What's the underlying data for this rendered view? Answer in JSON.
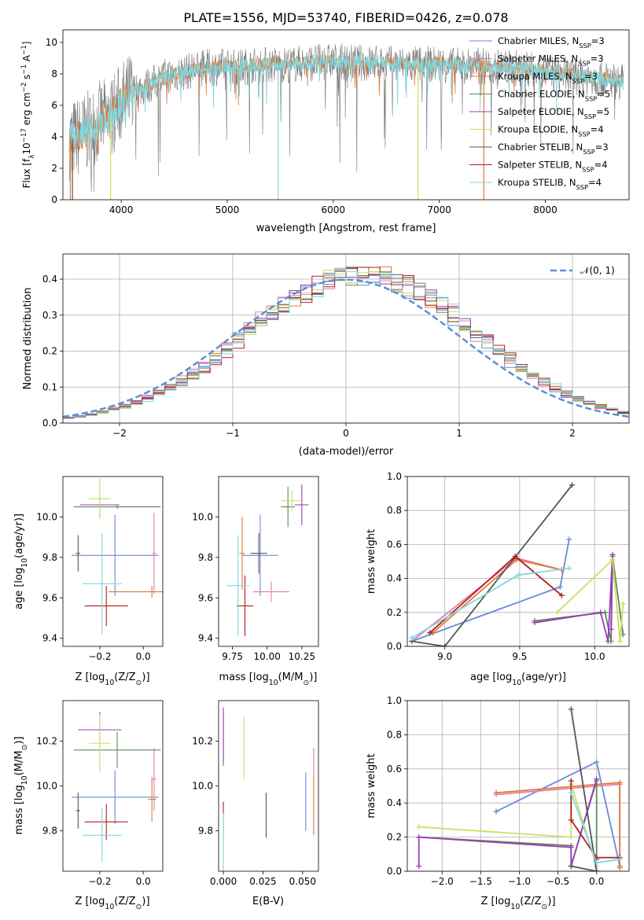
{
  "figure": {
    "title": "PLATE=1556, MJD=53740, FIBERID=0426, z=0.078"
  },
  "colors": {
    "chabrier_miles": "#6a8ad8",
    "salpeter_miles": "#e67ca9",
    "kroupa_miles": "#e07a3a",
    "chabrier_elodie": "#5a8a5a",
    "salpeter_elodie": "#9b3bb5",
    "kroupa_elodie": "#c8e060",
    "chabrier_stelib": "#555555",
    "salpeter_stelib": "#b41e1e",
    "kroupa_stelib": "#7fd8e0",
    "normal_curve": "#5b8fd8",
    "data_spectrum": "#777777"
  },
  "chart_data": [
    {
      "id": "spectrum",
      "type": "line",
      "title": "PLATE=1556, MJD=53740, FIBERID=0426, z=0.078",
      "xlabel": "wavelength [Angstrom, rest frame]",
      "ylabel": "Flux [f",
      "ylabel_sub": "λ",
      "ylabel_rest": "10",
      "ylabel_exp": "−17",
      "ylabel_tail": " erg cm",
      "ylabel_exp2": "−2",
      "ylabel_s": " s",
      "ylabel_exp3": "−1",
      "ylabel_A": " A",
      "ylabel_exp4": "−1",
      "ylabel_end": "]",
      "xlim": [
        3450,
        8790
      ],
      "ylim": [
        0,
        10.8
      ],
      "xticks": [
        "4000",
        "5000",
        "6000",
        "7000",
        "8000"
      ],
      "yticks": [
        "0",
        "2",
        "4",
        "6",
        "8",
        "10"
      ],
      "continuum_x": [
        3500,
        3600,
        3700,
        3800,
        3900,
        4000,
        4100,
        4200,
        4300,
        4400,
        4500,
        4600,
        4700,
        4800,
        4900,
        5000,
        5100,
        5200,
        5400,
        5600,
        5800,
        6000,
        6200,
        6400,
        6600,
        6800,
        7000,
        7200,
        7400,
        7600,
        7800,
        8000,
        8200,
        8400,
        8600,
        8750
      ],
      "continuum_y": [
        3.8,
        4.0,
        4.4,
        5.0,
        5.3,
        6.2,
        6.9,
        7.1,
        7.4,
        7.8,
        8.0,
        8.1,
        8.3,
        8.4,
        8.4,
        8.5,
        8.4,
        8.5,
        8.6,
        8.6,
        8.7,
        8.8,
        8.7,
        8.7,
        8.6,
        8.6,
        8.6,
        8.5,
        8.5,
        8.4,
        8.3,
        8.1,
        7.9,
        7.8,
        7.6,
        7.5
      ],
      "legend": [
        {
          "label": "Chabrier MILES, N",
          "sub": "SSP",
          "tail": "=3",
          "color_key": "chabrier_miles"
        },
        {
          "label": "Salpeter MILES, N",
          "sub": "SSP",
          "tail": "=3",
          "color_key": "salpeter_miles"
        },
        {
          "label": "Kroupa MILES, N",
          "sub": "SSP",
          "tail": "=3",
          "color_key": "kroupa_miles"
        },
        {
          "label": "Chabrier ELODIE, N",
          "sub": "SSP",
          "tail": "=5",
          "color_key": "chabrier_elodie"
        },
        {
          "label": "Salpeter ELODIE, N",
          "sub": "SSP",
          "tail": "=5",
          "color_key": "salpeter_elodie"
        },
        {
          "label": "Kroupa ELODIE, N",
          "sub": "SSP",
          "tail": "=4",
          "color_key": "kroupa_elodie"
        },
        {
          "label": "Chabrier STELIB, N",
          "sub": "SSP",
          "tail": "=3",
          "color_key": "chabrier_stelib"
        },
        {
          "label": "Salpeter STELIB, N",
          "sub": "SSP",
          "tail": "=4",
          "color_key": "salpeter_stelib"
        },
        {
          "label": "Kroupa STELIB, N",
          "sub": "SSP",
          "tail": "=4",
          "color_key": "kroupa_stelib"
        }
      ]
    },
    {
      "id": "residuals",
      "type": "line",
      "xlabel": "(data-model)/error",
      "ylabel": "Normed distribution",
      "xlim": [
        -2.5,
        2.5
      ],
      "ylim": [
        0,
        0.47
      ],
      "xticks": [
        "−2",
        "−1",
        "0",
        "1",
        "2"
      ],
      "yticks": [
        "0.0",
        "0.1",
        "0.2",
        "0.3",
        "0.4"
      ],
      "grid": true,
      "legend_label": "𝒩(0, 1)",
      "bin_width": 0.1
    },
    {
      "id": "age_vs_Z",
      "type": "scatter",
      "xlabel": "Z [log",
      "xlabel_sub": "10",
      "xlabel_tail": "(Z/Z",
      "xlabel_sun": "⊙",
      "xlabel_end": ")]",
      "ylabel": "age  [log",
      "ylabel_sub": "10",
      "ylabel_tail": "(age/yr)]",
      "xlim": [
        -0.37,
        0.09
      ],
      "ylim": [
        9.36,
        10.2
      ],
      "xticks": [
        "−0.2",
        "0.0"
      ],
      "yticks": [
        "9.4",
        "9.6",
        "9.8",
        "10.0"
      ],
      "points": [
        {
          "key": "chabrier_miles",
          "x": -0.13,
          "y": 9.81,
          "xerr": 0.2,
          "yerr": 0.2
        },
        {
          "key": "salpeter_miles",
          "x": 0.05,
          "y": 9.82,
          "xerr": 0.01,
          "yerr": 0.2
        },
        {
          "key": "kroupa_miles",
          "x": 0.04,
          "y": 9.63,
          "xerr": 0.2,
          "yerr": 0.03
        },
        {
          "key": "chabrier_elodie",
          "x": -0.12,
          "y": 10.05,
          "xerr": 0.2,
          "yerr": 0.01
        },
        {
          "key": "salpeter_elodie",
          "x": -0.2,
          "y": 10.06,
          "xerr": 0.09,
          "yerr": 0.06
        },
        {
          "key": "kroupa_elodie",
          "x": -0.2,
          "y": 10.09,
          "xerr": 0.05,
          "yerr": 0.1
        },
        {
          "key": "chabrier_stelib",
          "x": -0.3,
          "y": 9.82,
          "xerr": 0.01,
          "yerr": 0.09
        },
        {
          "key": "salpeter_stelib",
          "x": -0.17,
          "y": 9.56,
          "xerr": 0.1,
          "yerr": 0.1
        },
        {
          "key": "kroupa_stelib",
          "x": -0.19,
          "y": 9.67,
          "xerr": 0.09,
          "yerr": 0.25
        }
      ]
    },
    {
      "id": "age_vs_mass",
      "type": "scatter",
      "xlabel": "mass [log",
      "xlabel_sub": "10",
      "xlabel_tail": "(M/M",
      "xlabel_sun": "⊙",
      "xlabel_end": ")]",
      "xlim": [
        9.65,
        10.37
      ],
      "ylim": [
        9.36,
        10.2
      ],
      "xticks": [
        "9.75",
        "10.00",
        "10.25"
      ],
      "yticks": [
        "9.4",
        "9.6",
        "9.8",
        "10.0"
      ],
      "points": [
        {
          "key": "chabrier_miles",
          "x": 9.95,
          "y": 9.81,
          "xerr": 0.13,
          "yerr": 0.2
        },
        {
          "key": "salpeter_miles",
          "x": 10.03,
          "y": 9.63,
          "xerr": 0.13,
          "yerr": 0.05
        },
        {
          "key": "kroupa_miles",
          "x": 9.82,
          "y": 9.82,
          "xerr": 0.02,
          "yerr": 0.18
        },
        {
          "key": "chabrier_elodie",
          "x": 10.15,
          "y": 10.05,
          "xerr": 0.05,
          "yerr": 0.1
        },
        {
          "key": "salpeter_elodie",
          "x": 10.25,
          "y": 10.06,
          "xerr": 0.05,
          "yerr": 0.1
        },
        {
          "key": "kroupa_elodie",
          "x": 10.18,
          "y": 10.08,
          "xerr": 0.08,
          "yerr": 0.05
        },
        {
          "key": "chabrier_stelib",
          "x": 9.94,
          "y": 9.82,
          "xerr": 0.06,
          "yerr": 0.1
        },
        {
          "key": "salpeter_stelib",
          "x": 9.84,
          "y": 9.56,
          "xerr": 0.06,
          "yerr": 0.15
        },
        {
          "key": "kroupa_stelib",
          "x": 9.79,
          "y": 9.66,
          "xerr": 0.08,
          "yerr": 0.25
        }
      ]
    },
    {
      "id": "weight_vs_age",
      "type": "line",
      "xlabel": "age  [log",
      "xlabel_sub": "10",
      "xlabel_tail": "(age/yr)]",
      "ylabel": "mass weight",
      "xlim": [
        8.75,
        10.23
      ],
      "ylim": [
        0,
        1
      ],
      "xticks": [
        "9.0",
        "9.5",
        "10.0"
      ],
      "yticks": [
        "0.0",
        "0.2",
        "0.4",
        "0.6",
        "0.8",
        "1.0"
      ],
      "grid": true,
      "series": [
        {
          "key": "chabrier_miles",
          "x": [
            8.78,
            9.77,
            9.83
          ],
          "y": [
            0.03,
            0.35,
            0.63
          ]
        },
        {
          "key": "salpeter_miles",
          "x": [
            8.78,
            9.48,
            9.78
          ],
          "y": [
            0.03,
            0.52,
            0.45
          ]
        },
        {
          "key": "kroupa_miles",
          "x": [
            8.92,
            9.48,
            9.78
          ],
          "y": [
            0.08,
            0.51,
            0.45
          ]
        },
        {
          "key": "chabrier_elodie",
          "x": [
            9.6,
            10.07,
            10.11,
            10.12,
            10.19
          ],
          "y": [
            0.15,
            0.2,
            0.03,
            0.53,
            0.07
          ]
        },
        {
          "key": "salpeter_elodie",
          "x": [
            9.6,
            10.04,
            10.09,
            10.12,
            10.11
          ],
          "y": [
            0.14,
            0.2,
            0.03,
            0.54,
            0.1
          ]
        },
        {
          "key": "kroupa_elodie",
          "x": [
            9.75,
            10.12,
            10.17,
            10.19
          ],
          "y": [
            0.2,
            0.51,
            0.03,
            0.25
          ]
        },
        {
          "key": "chabrier_stelib",
          "x": [
            8.78,
            9.0,
            9.85
          ],
          "y": [
            0.03,
            0.0,
            0.95
          ]
        },
        {
          "key": "salpeter_stelib",
          "x": [
            8.9,
            9.47,
            9.78
          ],
          "y": [
            0.08,
            0.53,
            0.3
          ]
        },
        {
          "key": "kroupa_stelib",
          "x": [
            8.78,
            9.49,
            9.83
          ],
          "y": [
            0.05,
            0.42,
            0.46
          ]
        }
      ]
    },
    {
      "id": "mass_vs_Z",
      "type": "scatter",
      "xlabel": "Z [log",
      "xlabel_sub": "10",
      "xlabel_tail": "(Z/Z",
      "xlabel_sun": "⊙",
      "xlabel_end": ")]",
      "ylabel": "mass [log",
      "ylabel_sub": "10",
      "ylabel_tail": "(M/M",
      "ylabel_sun": "⊙",
      "ylabel_end": ")]",
      "xlim": [
        -0.37,
        0.09
      ],
      "ylim": [
        9.62,
        10.38
      ],
      "xticks": [
        "−0.2",
        "0.0"
      ],
      "yticks": [
        "9.8",
        "10.0",
        "10.2"
      ],
      "points": [
        {
          "key": "chabrier_miles",
          "x": -0.13,
          "y": 9.95,
          "xerr": 0.2,
          "yerr": 0.12
        },
        {
          "key": "salpeter_miles",
          "x": 0.05,
          "y": 10.03,
          "xerr": 0.01,
          "yerr": 0.14
        },
        {
          "key": "kroupa_miles",
          "x": 0.04,
          "y": 9.94,
          "xerr": 0.02,
          "yerr": 0.1
        },
        {
          "key": "chabrier_elodie",
          "x": -0.12,
          "y": 10.16,
          "xerr": 0.2,
          "yerr": 0.08
        },
        {
          "key": "salpeter_elodie",
          "x": -0.2,
          "y": 10.25,
          "xerr": 0.1,
          "yerr": 0.08
        },
        {
          "key": "kroupa_elodie",
          "x": -0.2,
          "y": 10.19,
          "xerr": 0.05,
          "yerr": 0.13
        },
        {
          "key": "chabrier_stelib",
          "x": -0.3,
          "y": 9.89,
          "xerr": 0.01,
          "yerr": 0.08
        },
        {
          "key": "salpeter_stelib",
          "x": -0.17,
          "y": 9.84,
          "xerr": 0.1,
          "yerr": 0.08
        },
        {
          "key": "kroupa_stelib",
          "x": -0.19,
          "y": 9.78,
          "xerr": 0.09,
          "yerr": 0.12
        }
      ]
    },
    {
      "id": "mass_vs_ebv",
      "type": "scatter",
      "xlabel": "E(B-V)",
      "xlim": [
        -0.003,
        0.06
      ],
      "ylim": [
        9.62,
        10.38
      ],
      "xticks": [
        "0.000",
        "0.025",
        "0.050"
      ],
      "yticks": [
        "9.8",
        "10.0",
        "10.2"
      ],
      "points": [
        {
          "key": "chabrier_miles",
          "x": 0.052,
          "y": 9.93,
          "yerr": 0.13
        },
        {
          "key": "salpeter_miles",
          "x": 0.057,
          "y": 9.98,
          "yerr": 0.19
        },
        {
          "key": "kroupa_miles",
          "x": 0.057,
          "y": 9.91,
          "yerr": 0.13
        },
        {
          "key": "chabrier_elodie",
          "x": 0.0,
          "y": 10.21,
          "yerr": 0.12
        },
        {
          "key": "salpeter_elodie",
          "x": 0.0,
          "y": 10.23,
          "yerr": 0.12
        },
        {
          "key": "kroupa_elodie",
          "x": 0.013,
          "y": 10.17,
          "yerr": 0.14
        },
        {
          "key": "chabrier_stelib",
          "x": 0.027,
          "y": 9.87,
          "yerr": 0.1
        },
        {
          "key": "salpeter_stelib",
          "x": 0.0,
          "y": 9.85,
          "yerr": 0.08
        },
        {
          "key": "kroupa_stelib",
          "x": 0.0,
          "y": 9.75,
          "yerr": 0.13
        }
      ]
    },
    {
      "id": "weight_vs_Z",
      "type": "line",
      "xlabel": "Z [log",
      "xlabel_sub": "10",
      "xlabel_tail": "(Z/Z",
      "xlabel_sun": "⊙",
      "xlabel_end": ")]",
      "ylabel": "mass weight",
      "xlim": [
        -2.45,
        0.42
      ],
      "ylim": [
        0,
        1
      ],
      "xticks": [
        "−2.0",
        "−1.5",
        "−1.0",
        "−0.5",
        "0.0"
      ],
      "yticks": [
        "0.0",
        "0.2",
        "0.4",
        "0.6",
        "0.8",
        "1.0"
      ],
      "grid": true,
      "series": [
        {
          "key": "chabrier_miles",
          "x": [
            -1.3,
            0.0,
            0.3
          ],
          "y": [
            0.35,
            0.64,
            0.03
          ]
        },
        {
          "key": "salpeter_miles",
          "x": [
            -1.3,
            0.3,
            0.3
          ],
          "y": [
            0.45,
            0.51,
            0.03
          ]
        },
        {
          "key": "kroupa_miles",
          "x": [
            -1.3,
            0.3,
            0.3
          ],
          "y": [
            0.46,
            0.52,
            0.02
          ]
        },
        {
          "key": "chabrier_elodie",
          "x": [
            -2.3,
            -0.33,
            -0.33,
            0.0,
            0.0
          ],
          "y": [
            0.2,
            0.15,
            0.03,
            0.53,
            0.07
          ]
        },
        {
          "key": "salpeter_elodie",
          "x": [
            -2.3,
            -2.3,
            -0.33,
            -0.33,
            0.0
          ],
          "y": [
            0.03,
            0.2,
            0.14,
            0.03,
            0.54
          ]
        },
        {
          "key": "kroupa_elodie",
          "x": [
            -2.3,
            -0.33,
            -0.33,
            0.0
          ],
          "y": [
            0.26,
            0.2,
            0.51,
            0.03
          ]
        },
        {
          "key": "chabrier_stelib",
          "x": [
            -0.33,
            0.0,
            -0.33,
            0.0
          ],
          "y": [
            0.95,
            0.0,
            0.03,
            0.0
          ]
        },
        {
          "key": "salpeter_stelib",
          "x": [
            -0.33,
            -0.33,
            0.0,
            0.3
          ],
          "y": [
            0.53,
            0.3,
            0.08,
            0.08
          ]
        },
        {
          "key": "kroupa_stelib",
          "x": [
            -0.33,
            0.0,
            0.3
          ],
          "y": [
            0.46,
            0.05,
            0.07
          ]
        }
      ]
    }
  ]
}
